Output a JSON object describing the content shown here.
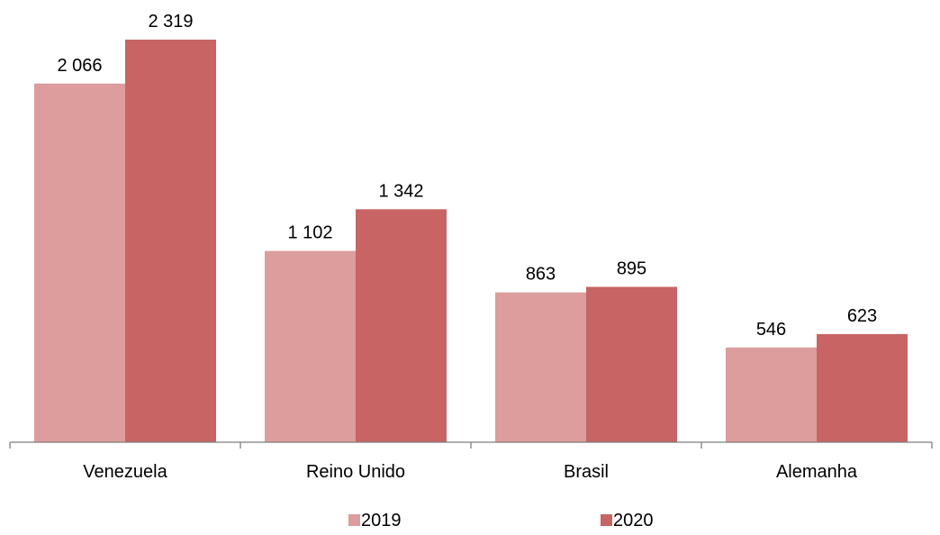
{
  "chart_data": {
    "type": "bar",
    "title": "",
    "xlabel": "",
    "ylabel": "",
    "categories": [
      "Venezuela",
      "Reino Unido",
      "Brasil",
      "Alemanha"
    ],
    "series": [
      {
        "name": "2019",
        "values": [
          2066,
          1102,
          863,
          546
        ],
        "labels": [
          "2 066",
          "1 102",
          "863",
          "546"
        ],
        "color": "#dc9d9c"
      },
      {
        "name": "2020",
        "values": [
          2319,
          1342,
          895,
          623
        ],
        "labels": [
          "2 319",
          "1 342",
          "895",
          "623"
        ],
        "color": "#c86464"
      }
    ],
    "ylim": [
      0,
      2319
    ],
    "grid": false,
    "legend_position": "bottom",
    "axis_color": "#7f7f7f"
  }
}
